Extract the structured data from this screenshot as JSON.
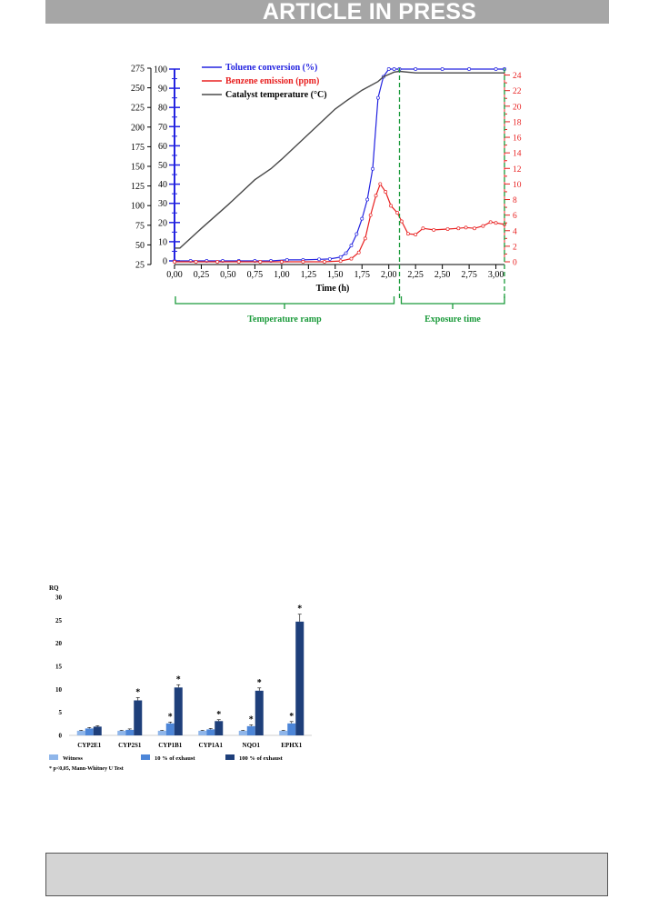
{
  "header": {
    "banner": "ARTICLE IN PRESS"
  },
  "colors": {
    "toluene": "#2323e0",
    "benzene": "#e82020",
    "temperature": "#4a4a4a",
    "phase": "#1a9a3a",
    "witness": "#8fb6ea",
    "exhaust10": "#4d86d8",
    "exhaust100": "#1e3f7a",
    "banner_bg": "#a6a6a6",
    "footer_bg": "#d4d4d4"
  },
  "chart_data": [
    {
      "type": "line",
      "xlabel": "Time (h)",
      "x_ticks": [
        "0,00",
        "0,25",
        "0,50",
        "0,75",
        "1,00",
        "1,25",
        "1,50",
        "1,75",
        "2,00",
        "2,25",
        "2,50",
        "2,75",
        "3,00"
      ],
      "xlim": [
        0,
        3.08
      ],
      "axes": {
        "temperature": {
          "ticks": [
            "275",
            "250",
            "225",
            "200",
            "175",
            "150",
            "125",
            "100",
            "75",
            "50",
            "25"
          ],
          "ylim": [
            25,
            275
          ]
        },
        "conversion": {
          "ticks": [
            "100",
            "90",
            "80",
            "70",
            "60",
            "50",
            "40",
            "30",
            "20",
            "10",
            "0"
          ],
          "ylim": [
            0,
            100
          ]
        },
        "emission": {
          "ticks": [
            "24",
            "22",
            "20",
            "18",
            "16",
            "14",
            "12",
            "10",
            "8",
            "6",
            "4",
            "2",
            "0"
          ],
          "ylim": [
            0,
            25
          ]
        }
      },
      "legend_position": "top-left",
      "series": [
        {
          "name": "Toluene conversion (%)",
          "axis": "conversion",
          "x": [
            0,
            0.15,
            0.3,
            0.45,
            0.6,
            0.75,
            0.9,
            1.05,
            1.2,
            1.35,
            1.45,
            1.55,
            1.6,
            1.65,
            1.7,
            1.75,
            1.8,
            1.85,
            1.9,
            1.95,
            2.0,
            2.05,
            2.1,
            2.25,
            2.5,
            2.75,
            3.0,
            3.08
          ],
          "y": [
            0,
            0,
            0,
            0,
            0,
            0,
            0,
            0.5,
            0.5,
            0.8,
            1,
            2,
            4,
            8,
            14,
            22,
            32,
            48,
            85,
            96,
            100,
            100,
            100,
            100,
            100,
            100,
            100,
            100
          ]
        },
        {
          "name": "Benzene emission (ppm)",
          "axis": "emission",
          "x": [
            0,
            0.2,
            0.4,
            0.6,
            0.8,
            1.0,
            1.2,
            1.4,
            1.55,
            1.65,
            1.72,
            1.78,
            1.83,
            1.88,
            1.92,
            1.97,
            2.02,
            2.08,
            2.12,
            2.18,
            2.25,
            2.32,
            2.42,
            2.55,
            2.65,
            2.72,
            2.8,
            2.88,
            2.95,
            3.0,
            3.08
          ],
          "y": [
            0,
            0,
            0,
            0,
            0,
            0,
            0,
            0,
            0.1,
            0.4,
            1.2,
            3,
            6,
            8.5,
            10,
            9,
            7.2,
            6.3,
            5.2,
            3.6,
            3.5,
            4.3,
            4.1,
            4.2,
            4.3,
            4.4,
            4.3,
            4.6,
            5.1,
            5,
            4.8
          ]
        },
        {
          "name": "Catalyst temperature (°C)",
          "axis": "temperature",
          "x": [
            0,
            0.05,
            0.25,
            0.5,
            0.75,
            0.9,
            1.0,
            1.25,
            1.5,
            1.6,
            1.75,
            1.9,
            1.95,
            2.05,
            2.1,
            2.25,
            2.5,
            2.75,
            3.0,
            3.08
          ],
          "y": [
            46,
            46,
            71,
            101,
            133,
            147,
            159,
            191,
            223,
            233,
            247,
            258,
            264,
            270,
            271,
            269,
            269,
            269,
            269,
            269
          ]
        }
      ],
      "phases": [
        {
          "label": "Temperature ramp",
          "x_range": [
            0,
            2.1
          ]
        },
        {
          "label": "Exposure time",
          "x_range": [
            2.1,
            3.08
          ]
        }
      ]
    },
    {
      "type": "bar",
      "ylabel": "RQ",
      "ylim": [
        0,
        30
      ],
      "y_ticks": [
        "30",
        "25",
        "20",
        "15",
        "10",
        "5",
        "0"
      ],
      "categories": [
        "CYP2E1",
        "CYP2S1",
        "CYP1B1",
        "CYP1A1",
        "NQO1",
        "EPHX1"
      ],
      "series": [
        {
          "name": "Witness",
          "values": [
            1.0,
            1.0,
            1.0,
            1.0,
            1.0,
            1.0
          ],
          "errors": [
            0.1,
            0.1,
            0.1,
            0.1,
            0.1,
            0.1
          ]
        },
        {
          "name": "10 % of exhaust",
          "values": [
            1.5,
            1.2,
            2.6,
            1.3,
            2.0,
            2.6
          ],
          "errors": [
            0.2,
            0.2,
            0.3,
            0.2,
            0.3,
            0.4
          ]
        },
        {
          "name": "100 % of exhaust",
          "values": [
            1.9,
            7.6,
            10.4,
            3.1,
            9.7,
            24.7
          ],
          "errors": [
            0.2,
            0.6,
            0.6,
            0.3,
            0.6,
            1.6
          ]
        }
      ],
      "significant_marks": [
        {
          "category": "CYP2S1",
          "series": "100 % of exhaust"
        },
        {
          "category": "CYP1B1",
          "series": "10 % of exhaust"
        },
        {
          "category": "CYP1B1",
          "series": "100 % of exhaust"
        },
        {
          "category": "CYP1A1",
          "series": "100 % of exhaust"
        },
        {
          "category": "NQO1",
          "series": "10 % of exhaust"
        },
        {
          "category": "NQO1",
          "series": "100 % of exhaust"
        },
        {
          "category": "EPHX1",
          "series": "10 % of exhaust"
        },
        {
          "category": "EPHX1",
          "series": "100 % of exhaust"
        }
      ],
      "significance_symbol": "*",
      "footnote": "* p<0,05, Mann-Whitney U Test",
      "legend_position": "bottom"
    }
  ]
}
